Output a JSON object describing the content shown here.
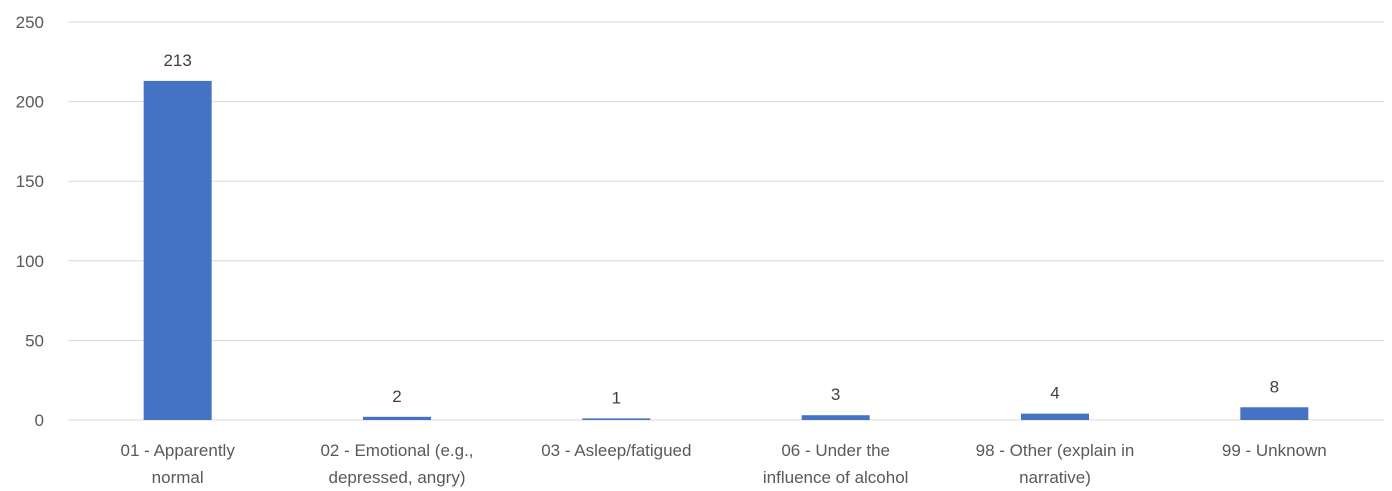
{
  "chart_data": {
    "type": "bar",
    "title": "",
    "xlabel": "",
    "ylabel": "",
    "categories": [
      [
        "01 - Apparently",
        "normal"
      ],
      [
        "02 - Emotional (e.g.,",
        "depressed, angry)"
      ],
      [
        "03 - Asleep/fatigued"
      ],
      [
        "06 - Under the",
        "influence of alcohol"
      ],
      [
        "98 - Other (explain in",
        "narrative)"
      ],
      [
        "99 - Unknown"
      ]
    ],
    "values": [
      213,
      2,
      1,
      3,
      4,
      8
    ],
    "ylim": [
      0,
      250
    ],
    "yticks": [
      0,
      50,
      100,
      150,
      200,
      250
    ],
    "grid": true,
    "legend": "none",
    "bar_color": "#4472c4"
  }
}
